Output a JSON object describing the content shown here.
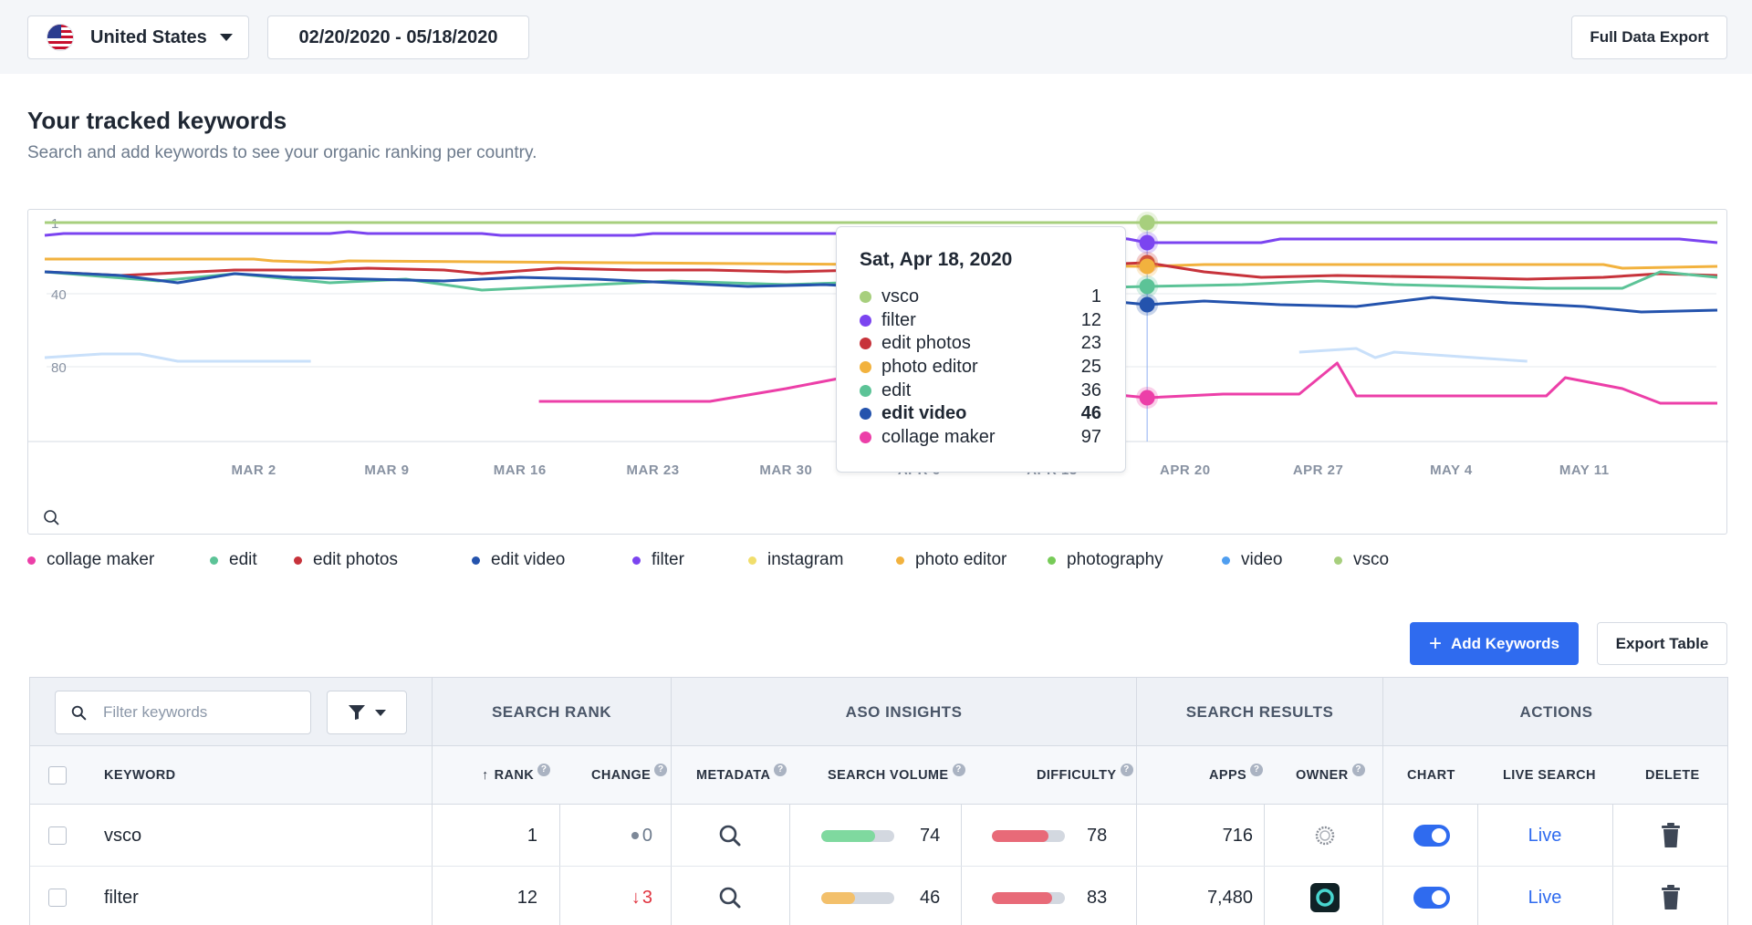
{
  "header": {
    "country": "United States",
    "date_range": "02/20/2020 - 05/18/2020",
    "full_export_label": "Full Data Export"
  },
  "section": {
    "title": "Your tracked keywords",
    "subtitle": "Search and add keywords to see your organic ranking per country."
  },
  "colors": {
    "accent": "#2f6bef",
    "vsco": "#a7cf7d",
    "filter": "#7b44f0",
    "edit_photos": "#c7333b",
    "photo_editor": "#f2b23e",
    "edit": "#5cc397",
    "edit_video": "#2453ad",
    "collage_maker": "#ec3fa8",
    "instagram": "#f1de6c",
    "photography": "#77cb58",
    "video": "#4f9ef0"
  },
  "chart_data": {
    "type": "line",
    "y_axis_reversed": true,
    "ylim": [
      1,
      120
    ],
    "ytick_labels": [
      "1",
      "40",
      "80"
    ],
    "xtick_labels": [
      "MAR 2",
      "MAR 9",
      "MAR 16",
      "MAR 23",
      "MAR 30",
      "APR 6",
      "APR 13",
      "APR 20",
      "APR 27",
      "MAY 4",
      "MAY 11"
    ],
    "x_range": [
      "2020-02-20",
      "2020-05-18"
    ],
    "highlight_date": "2020-04-18",
    "series": [
      {
        "name": "vsco",
        "color": "#a7cf7d",
        "x": [
          "2020-02-20",
          "2020-05-18"
        ],
        "values": [
          1,
          1
        ]
      },
      {
        "name": "filter",
        "color": "#7b44f0",
        "x": [
          "2020-02-20",
          "2020-02-21",
          "2020-03-06",
          "2020-03-07",
          "2020-03-08",
          "2020-03-14",
          "2020-03-15",
          "2020-03-22",
          "2020-03-23",
          "2020-04-06",
          "2020-04-07",
          "2020-04-16",
          "2020-04-17",
          "2020-04-18",
          "2020-04-19",
          "2020-04-24",
          "2020-04-25",
          "2020-05-16",
          "2020-05-18"
        ],
        "values": [
          8,
          7,
          7,
          6,
          7,
          7,
          8,
          8,
          7,
          7,
          9,
          9,
          10,
          12,
          12,
          12,
          10,
          10,
          12
        ]
      },
      {
        "name": "photo editor",
        "color": "#f2b23e",
        "x": [
          "2020-02-20",
          "2020-03-02",
          "2020-03-03",
          "2020-03-06",
          "2020-03-07",
          "2020-04-18",
          "2020-04-21",
          "2020-05-12",
          "2020-05-13",
          "2020-05-18"
        ],
        "values": [
          21,
          21,
          22,
          23,
          22,
          25,
          24,
          24,
          26,
          25
        ]
      },
      {
        "name": "edit photos",
        "color": "#c7333b",
        "x": [
          "2020-02-20",
          "2020-02-24",
          "2020-03-01",
          "2020-03-05",
          "2020-03-08",
          "2020-03-12",
          "2020-03-14",
          "2020-03-18",
          "2020-03-22",
          "2020-03-26",
          "2020-03-30",
          "2020-04-03",
          "2020-04-07",
          "2020-04-10",
          "2020-04-13",
          "2020-04-18",
          "2020-04-21",
          "2020-04-24",
          "2020-04-28",
          "2020-05-04",
          "2020-05-08",
          "2020-05-12",
          "2020-05-15",
          "2020-05-18"
        ],
        "values": [
          28,
          30,
          27,
          27,
          26,
          27,
          29,
          26,
          27,
          27,
          28,
          27,
          25,
          26,
          25,
          23,
          28,
          31,
          30,
          31,
          32,
          31,
          29,
          30
        ]
      },
      {
        "name": "edit",
        "color": "#5cc397",
        "x": [
          "2020-02-20",
          "2020-02-26",
          "2020-03-01",
          "2020-03-06",
          "2020-03-10",
          "2020-03-14",
          "2020-03-18",
          "2020-03-24",
          "2020-03-30",
          "2020-04-05",
          "2020-04-10",
          "2020-04-14",
          "2020-04-18",
          "2020-04-23",
          "2020-04-27",
          "2020-05-01",
          "2020-05-05",
          "2020-05-09",
          "2020-05-13",
          "2020-05-15",
          "2020-05-18"
        ],
        "values": [
          28,
          33,
          29,
          34,
          32,
          38,
          36,
          33,
          35,
          33,
          35,
          37,
          36,
          35,
          33,
          35,
          36,
          37,
          37,
          28,
          31
        ]
      },
      {
        "name": "edit video",
        "color": "#2453ad",
        "x": [
          "2020-02-20",
          "2020-02-24",
          "2020-02-27",
          "2020-03-01",
          "2020-03-04",
          "2020-03-08",
          "2020-03-12",
          "2020-03-16",
          "2020-03-20",
          "2020-03-24",
          "2020-03-28",
          "2020-04-01",
          "2020-04-05",
          "2020-04-09",
          "2020-04-13",
          "2020-04-16",
          "2020-04-18",
          "2020-04-21",
          "2020-04-25",
          "2020-04-29",
          "2020-05-03",
          "2020-05-07",
          "2020-05-11",
          "2020-05-14",
          "2020-05-18"
        ],
        "values": [
          28,
          30,
          34,
          29,
          31,
          32,
          33,
          31,
          32,
          34,
          36,
          35,
          37,
          38,
          42,
          44,
          46,
          44,
          46,
          47,
          42,
          45,
          47,
          50,
          49
        ]
      },
      {
        "name": "collage maker",
        "color": "#ec3fa8",
        "x": [
          "2020-03-17",
          "2020-03-26",
          "2020-03-30",
          "2020-04-02",
          "2020-04-05",
          "2020-04-10",
          "2020-04-15",
          "2020-04-18",
          "2020-04-22",
          "2020-04-26",
          "2020-04-28",
          "2020-04-29",
          "2020-05-03",
          "2020-05-09",
          "2020-05-10",
          "2020-05-13",
          "2020-05-15",
          "2020-05-18"
        ],
        "values": [
          99,
          99,
          92,
          86,
          92,
          95,
          94,
          97,
          95,
          95,
          78,
          96,
          96,
          96,
          86,
          92,
          100,
          100
        ]
      },
      {
        "name": "video",
        "color": "#c9e0fa",
        "x": [
          "2020-02-20",
          "2020-02-23",
          "2020-02-25",
          "2020-02-27",
          "2020-03-05"
        ],
        "values": [
          75,
          73,
          73,
          77,
          77
        ]
      },
      {
        "name": "video",
        "color": "#c9e0fa",
        "x": [
          "2020-04-26",
          "2020-04-29",
          "2020-04-30",
          "2020-05-01",
          "2020-05-08"
        ],
        "values": [
          72,
          70,
          75,
          72,
          77
        ]
      }
    ]
  },
  "tooltip": {
    "date": "Sat, Apr 18, 2020",
    "rows": [
      {
        "name": "vsco",
        "value": "1",
        "color": "#a7cf7d"
      },
      {
        "name": "filter",
        "value": "12",
        "color": "#7b44f0"
      },
      {
        "name": "edit photos",
        "value": "23",
        "color": "#c7333b"
      },
      {
        "name": "photo editor",
        "value": "25",
        "color": "#f2b23e"
      },
      {
        "name": "edit",
        "value": "36",
        "color": "#5cc397"
      },
      {
        "name": "edit video",
        "value": "46",
        "color": "#2453ad"
      },
      {
        "name": "collage maker",
        "value": "97",
        "color": "#ec3fa8"
      }
    ]
  },
  "legend": [
    {
      "name": "collage maker",
      "color": "#ec3fa8"
    },
    {
      "name": "edit",
      "color": "#5cc397"
    },
    {
      "name": "edit photos",
      "color": "#c7333b"
    },
    {
      "name": "edit video",
      "color": "#2453ad"
    },
    {
      "name": "filter",
      "color": "#7b44f0"
    },
    {
      "name": "instagram",
      "color": "#f1de6c"
    },
    {
      "name": "photo editor",
      "color": "#f2b23e"
    },
    {
      "name": "photography",
      "color": "#77cb58"
    },
    {
      "name": "video",
      "color": "#4f9ef0"
    },
    {
      "name": "vsco",
      "color": "#a7cf7d"
    }
  ],
  "actions": {
    "add_keywords_label": "Add Keywords",
    "export_table_label": "Export Table"
  },
  "table": {
    "filter_placeholder": "Filter keywords",
    "groups": [
      "SEARCH RANK",
      "ASO INSIGHTS",
      "SEARCH RESULTS",
      "ACTIONS"
    ],
    "columns": {
      "keyword": "KEYWORD",
      "rank": "RANK",
      "change": "CHANGE",
      "metadata": "METADATA",
      "search_volume": "SEARCH VOLUME",
      "difficulty": "DIFFICULTY",
      "apps": "APPS",
      "owner": "OWNER",
      "chart": "CHART",
      "live_search": "LIVE SEARCH",
      "delete": "DELETE"
    },
    "rows": [
      {
        "keyword": "vsco",
        "rank": "1",
        "change": "0",
        "change_dir": "none",
        "search_volume": "74",
        "search_volume_level": 0.74,
        "search_volume_color": "#7fd99f",
        "difficulty": "78",
        "difficulty_level": 0.78,
        "apps": "716",
        "live": "Live",
        "owner_icon": "vsco-logo-icon"
      },
      {
        "keyword": "filter",
        "rank": "12",
        "change": "3",
        "change_dir": "down",
        "search_volume": "46",
        "search_volume_level": 0.46,
        "search_volume_color": "#f3c06b",
        "difficulty": "83",
        "difficulty_level": 0.83,
        "apps": "7,480",
        "live": "Live",
        "owner_icon": "app-logo-icon"
      }
    ]
  }
}
